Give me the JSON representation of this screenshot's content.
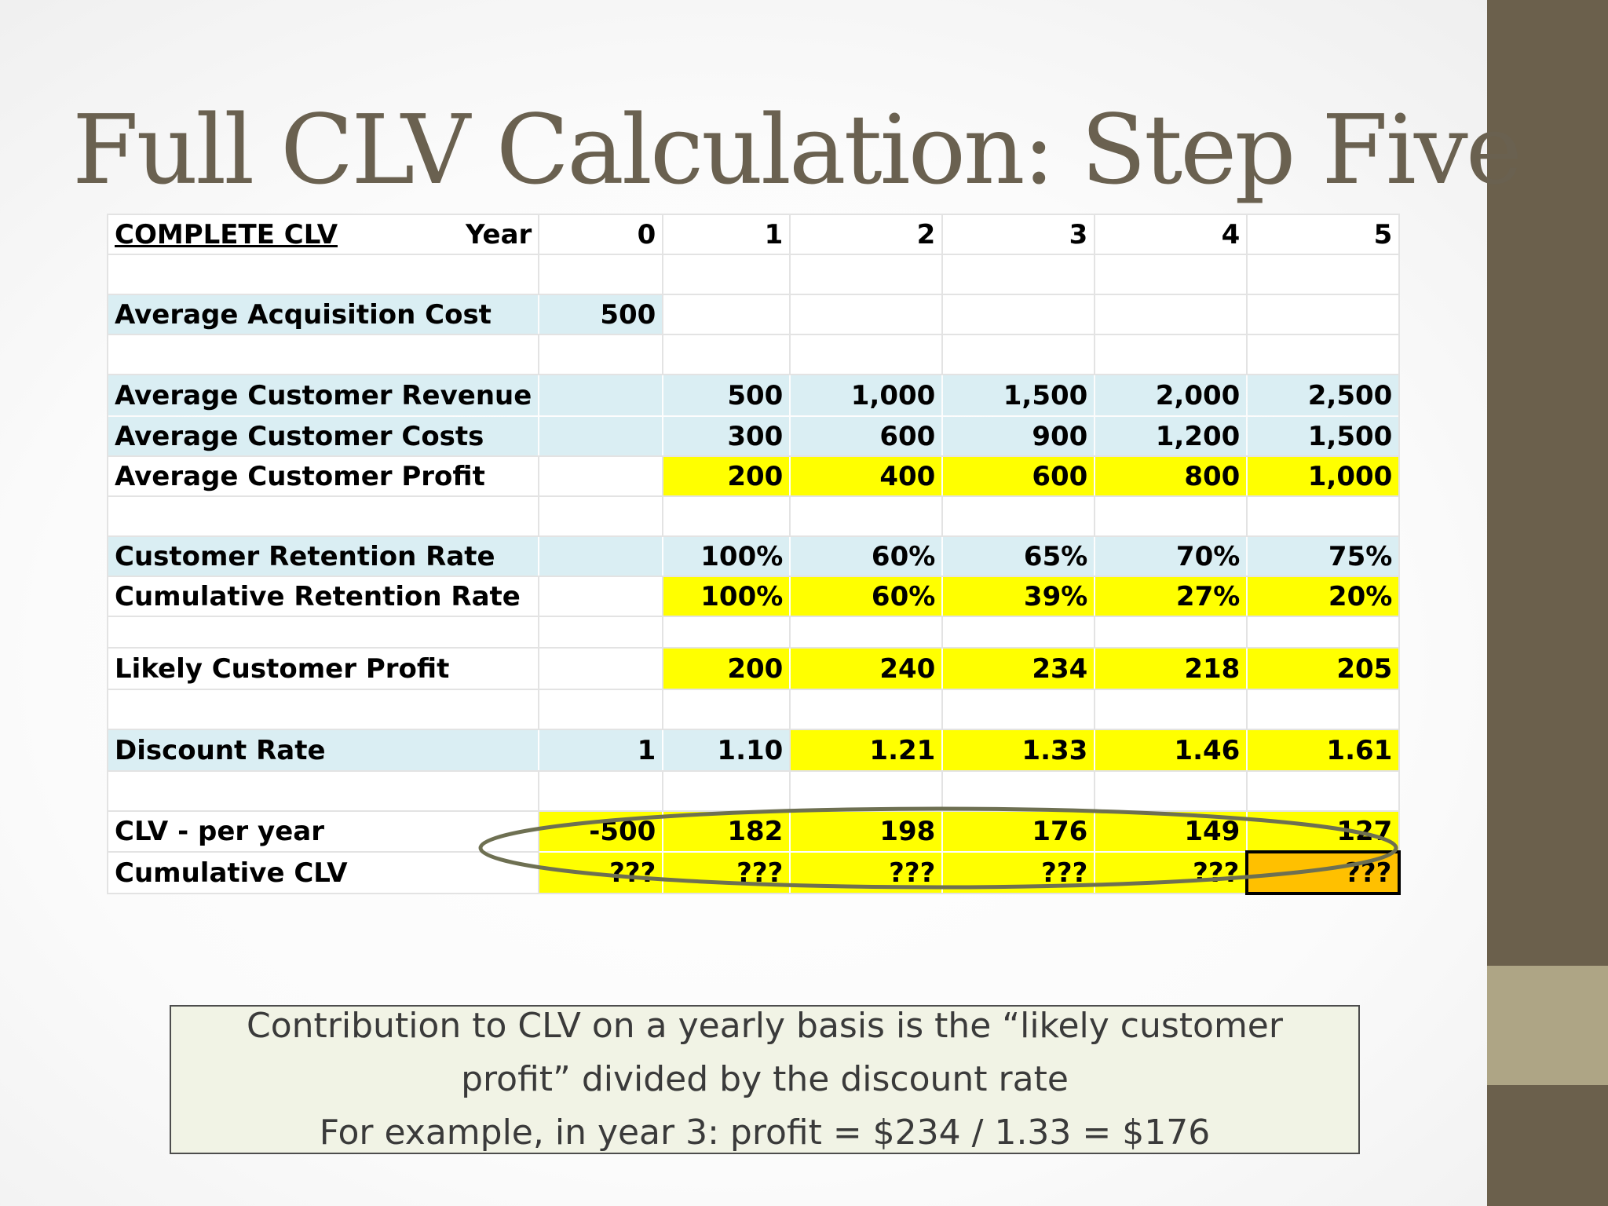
{
  "slide": {
    "title": "Full CLV Calculation: Step Five"
  },
  "table": {
    "header": {
      "label": "COMPLETE CLV",
      "year_label": "Year",
      "years": [
        "0",
        "1",
        "2",
        "3",
        "4",
        "5"
      ]
    },
    "acquisition_cost": {
      "label": "Average Acquisition Cost",
      "year0": "500"
    },
    "revenue": {
      "label": "Average Customer Revenue",
      "values": [
        "500",
        "1,000",
        "1,500",
        "2,000",
        "2,500"
      ]
    },
    "costs": {
      "label": "Average Customer Costs",
      "values": [
        "300",
        "600",
        "900",
        "1,200",
        "1,500"
      ]
    },
    "profit": {
      "label": "Average Customer Profit",
      "values": [
        "200",
        "400",
        "600",
        "800",
        "1,000"
      ]
    },
    "retention": {
      "label": "Customer Retention Rate",
      "values": [
        "100%",
        "60%",
        "65%",
        "70%",
        "75%"
      ]
    },
    "cumulative_retention": {
      "label": "Cumulative Retention Rate",
      "values": [
        "100%",
        "60%",
        "39%",
        "27%",
        "20%"
      ]
    },
    "likely_profit": {
      "label": "Likely Customer Profit",
      "values": [
        "200",
        "240",
        "234",
        "218",
        "205"
      ]
    },
    "discount_rate": {
      "label": "Discount Rate",
      "year0": "1",
      "values": [
        "1.10",
        "1.21",
        "1.33",
        "1.46",
        "1.61"
      ]
    },
    "clv_per_year": {
      "label": "CLV - per year",
      "year0": "-500",
      "values": [
        "182",
        "198",
        "176",
        "149",
        "127"
      ]
    },
    "cumulative_clv": {
      "label": "Cumulative CLV",
      "year0": "???",
      "values": [
        "???",
        "???",
        "???",
        "???",
        "???"
      ]
    }
  },
  "colors": {
    "title": "#6a6150",
    "row_blue": "#daeef3",
    "highlight_yellow": "#ffff00",
    "highlight_orange": "#ffc000",
    "side_bar": "#6b604c",
    "side_accent": "#aea585",
    "ellipse": "#6e7052",
    "note_background": "#f1f3e5"
  },
  "note": {
    "line1": "Contribution to CLV on a yearly basis is the “likely customer",
    "line2": "profit” divided by the discount rate",
    "line3": "For example, in year 3: profit = $234 / 1.33 = $176"
  }
}
